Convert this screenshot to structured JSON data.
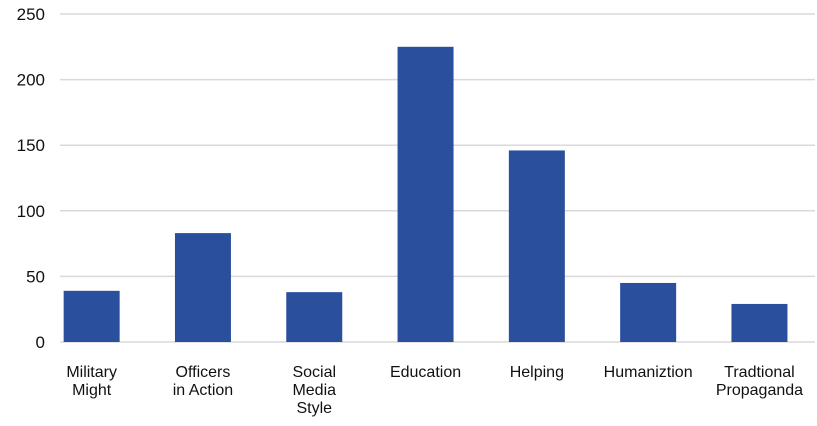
{
  "chart_data": {
    "type": "bar",
    "title": "",
    "xlabel": "",
    "ylabel": "",
    "categories": [
      [
        "Military",
        "Might"
      ],
      [
        "Officers",
        "in Action"
      ],
      [
        "Social",
        "Media",
        "Style"
      ],
      [
        "Education"
      ],
      [
        "Helping"
      ],
      [
        "Humaniztion"
      ],
      [
        "Tradtional",
        "Propaganda"
      ]
    ],
    "values": [
      39,
      83,
      38,
      225,
      146,
      45,
      29
    ],
    "ylim": [
      0,
      250
    ],
    "yticks": [
      0,
      50,
      100,
      150,
      200,
      250
    ],
    "grid": true,
    "legend": "none",
    "colors": {
      "bar": "#2a4f9d",
      "grid": "#d9d9d9",
      "text": "#111111"
    }
  }
}
